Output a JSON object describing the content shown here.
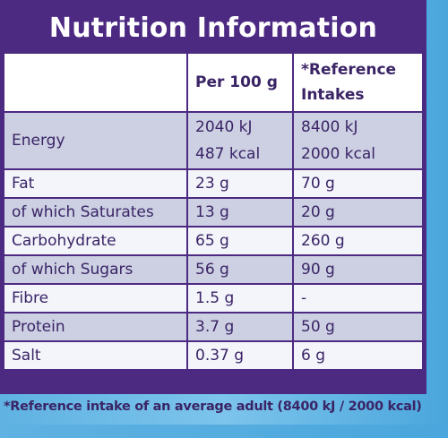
{
  "title": "Nutrition Information",
  "headers": {
    "col1": "",
    "per100g": "Per 100 g",
    "ref_line1": "*Reference",
    "ref_line2": "Intakes"
  },
  "energy": {
    "label": "Energy",
    "per100g_kj": "2040 kJ",
    "per100g_kcal": "487 kcal",
    "ref_kj": "8400 kJ",
    "ref_kcal": "2000 kcal"
  },
  "rows": [
    {
      "label": "Fat",
      "per100g": "23 g",
      "ref": "70 g"
    },
    {
      "label": "of which Saturates",
      "per100g": "13 g",
      "ref": "20 g"
    },
    {
      "label": "Carbohydrate",
      "per100g": "65 g",
      "ref": "260 g"
    },
    {
      "label": "of which Sugars",
      "per100g": "56 g",
      "ref": "90 g"
    },
    {
      "label": "Fibre",
      "per100g": "1.5 g",
      "ref": "-"
    },
    {
      "label": "Protein",
      "per100g": "3.7 g",
      "ref": "50 g"
    },
    {
      "label": "Salt",
      "per100g": "0.37 g",
      "ref": "6 g"
    }
  ],
  "footnote": "*Reference intake of an average adult (8400 kJ / 2000 kcal)",
  "colors": {
    "panel": "#4d2a82",
    "shade": "#ccd0e2",
    "light": "#f3f5fb",
    "text": "#3a2466",
    "background": "#6bbbe7"
  }
}
